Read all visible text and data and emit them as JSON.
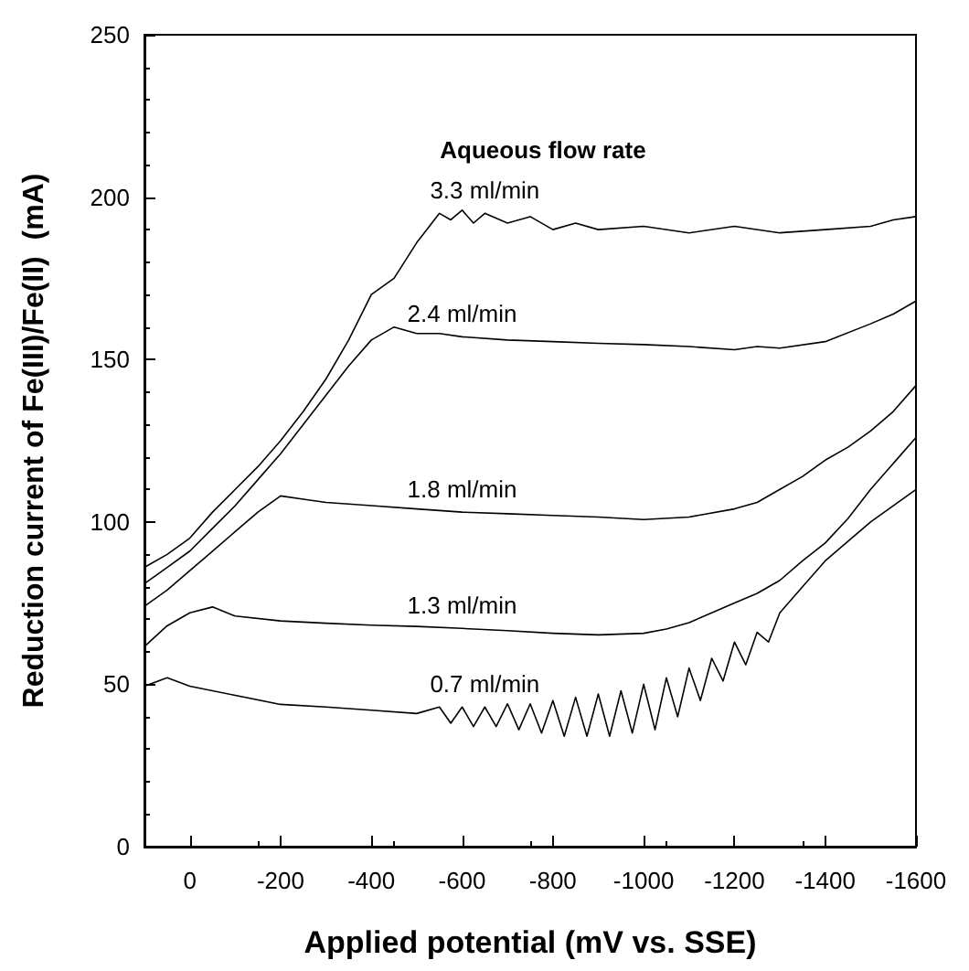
{
  "chart_data": {
    "type": "line",
    "xlabel": "Applied potential (mV vs. SSE)",
    "ylabel": "Reduction current of Fe(III)/Fe(II)  (mA)",
    "annotations": [
      "Aqueous flow rate"
    ],
    "xlim": [
      100,
      -1600
    ],
    "ylim": [
      0,
      250
    ],
    "xticks": [
      0,
      -200,
      -400,
      -600,
      -800,
      -1000,
      -1200,
      -1400,
      -1600
    ],
    "yticks": [
      0,
      50,
      100,
      150,
      200,
      250
    ],
    "grid": false,
    "legend": false,
    "marker": "none",
    "line_style": "solid",
    "series": [
      {
        "name": "3.3 ml/min",
        "color": "#000000",
        "x": [
          100,
          50,
          0,
          -50,
          -100,
          -150,
          -200,
          -250,
          -300,
          -350,
          -400,
          -450,
          -500,
          -550,
          -575,
          -600,
          -625,
          -650,
          -700,
          -750,
          -800,
          -850,
          -900,
          -1000,
          -1100,
          -1200,
          -1300,
          -1400,
          -1500,
          -1550,
          -1600
        ],
        "values": [
          86,
          90,
          95,
          103,
          110,
          117,
          125,
          134,
          144,
          156,
          170,
          175,
          186,
          195,
          193,
          196,
          192,
          195,
          192,
          194,
          190,
          192,
          190,
          191,
          189,
          191,
          189,
          190,
          191,
          193,
          194
        ]
      },
      {
        "name": "2.4 ml/min",
        "color": "#000000",
        "x": [
          100,
          50,
          0,
          -50,
          -100,
          -150,
          -200,
          -250,
          -300,
          -350,
          -400,
          -450,
          -500,
          -550,
          -600,
          -700,
          -800,
          -900,
          -1000,
          -1100,
          -1200,
          -1250,
          -1300,
          -1400,
          -1500,
          -1550,
          -1600
        ],
        "values": [
          81,
          86,
          91,
          98,
          105,
          113,
          121,
          130,
          139,
          148,
          156,
          160,
          158,
          158,
          157,
          156,
          155.5,
          155,
          154.6,
          154,
          153,
          154,
          153.5,
          155.5,
          161,
          164,
          168
        ]
      },
      {
        "name": "1.8 ml/min",
        "color": "#000000",
        "x": [
          100,
          50,
          0,
          -50,
          -100,
          -150,
          -200,
          -250,
          -300,
          -400,
          -500,
          -600,
          -700,
          -800,
          -900,
          -1000,
          -1100,
          -1200,
          -1250,
          -1300,
          -1350,
          -1400,
          -1450,
          -1500,
          -1550,
          -1600
        ],
        "values": [
          74,
          79,
          85,
          91,
          97,
          103,
          108,
          107,
          106,
          105,
          104,
          103,
          102.5,
          102,
          101.5,
          100.7,
          101.5,
          104,
          106,
          110,
          114,
          119,
          123,
          128,
          134,
          142
        ]
      },
      {
        "name": "1.3 ml/min",
        "color": "#000000",
        "x": [
          100,
          50,
          0,
          -50,
          -100,
          -200,
          -300,
          -400,
          -500,
          -600,
          -700,
          -800,
          -900,
          -1000,
          -1050,
          -1100,
          -1150,
          -1200,
          -1250,
          -1300,
          -1350,
          -1400,
          -1450,
          -1500,
          -1550,
          -1600
        ],
        "values": [
          61.6,
          68,
          72,
          73.8,
          71,
          69.5,
          68.8,
          68.2,
          67.8,
          67.2,
          66.5,
          65.7,
          65.2,
          65.7,
          67,
          69,
          72,
          75,
          78,
          82,
          88,
          93.5,
          101,
          110,
          118,
          126
        ]
      },
      {
        "name": "0.7 ml/min",
        "color": "#000000",
        "x": [
          100,
          50,
          0,
          -100,
          -200,
          -300,
          -400,
          -500,
          -550,
          -575,
          -600,
          -625,
          -650,
          -675,
          -700,
          -725,
          -750,
          -775,
          -800,
          -825,
          -850,
          -875,
          -900,
          -925,
          -950,
          -975,
          -1000,
          -1025,
          -1050,
          -1075,
          -1100,
          -1125,
          -1150,
          -1175,
          -1200,
          -1225,
          -1250,
          -1275,
          -1300,
          -1350,
          -1400,
          -1450,
          -1500,
          -1550,
          -1600
        ],
        "values": [
          49.4,
          52,
          49.4,
          46.6,
          43.8,
          43,
          42,
          41,
          43,
          38,
          43,
          37,
          43,
          37,
          44,
          36,
          44,
          35,
          45,
          34,
          46,
          34,
          47,
          34,
          48,
          35,
          50,
          36,
          52,
          40,
          55,
          45,
          58,
          51,
          63,
          56,
          66,
          63,
          72,
          80,
          88,
          94,
          100,
          105,
          110
        ]
      }
    ]
  }
}
